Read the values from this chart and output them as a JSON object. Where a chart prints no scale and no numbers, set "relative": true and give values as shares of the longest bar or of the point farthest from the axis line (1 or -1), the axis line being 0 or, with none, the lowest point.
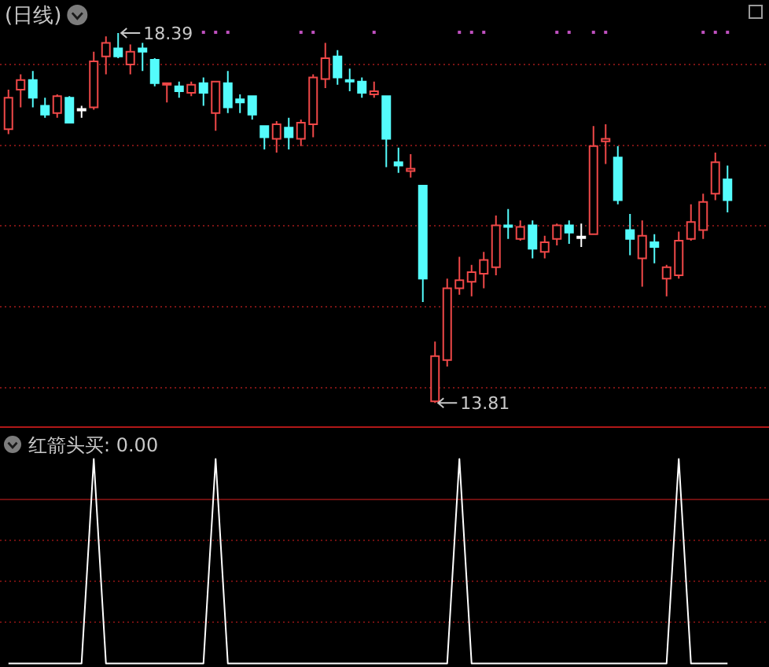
{
  "chart_data": [
    {
      "type": "candlestick",
      "title": "(日线)",
      "categories": [
        null,
        null,
        null,
        null,
        null,
        null,
        null,
        null,
        null,
        null,
        null,
        null,
        null,
        null,
        null,
        null,
        null,
        null,
        null,
        null,
        null,
        null,
        null,
        null,
        null,
        null,
        null,
        null,
        null,
        null,
        null,
        null,
        null,
        null,
        null,
        null,
        null,
        null,
        null,
        null,
        null,
        null,
        null,
        null,
        null,
        null,
        null,
        null,
        null,
        null,
        null,
        null,
        null,
        null,
        null,
        null,
        null,
        null,
        null,
        null
      ],
      "ohlc": [
        [
          17.2,
          17.69,
          17.14,
          17.59
        ],
        [
          17.69,
          17.88,
          17.47,
          17.81
        ],
        [
          17.81,
          17.92,
          17.47,
          17.59
        ],
        [
          17.49,
          17.59,
          17.34,
          17.38
        ],
        [
          17.4,
          17.63,
          17.34,
          17.61
        ],
        [
          17.59,
          17.61,
          17.28,
          17.28
        ],
        [
          17.44,
          17.49,
          17.34,
          17.44
        ],
        [
          17.47,
          18.16,
          17.44,
          18.04
        ],
        [
          18.1,
          18.35,
          17.88,
          18.27
        ],
        [
          18.2,
          18.39,
          18.08,
          18.1
        ],
        [
          18.0,
          18.25,
          17.88,
          18.16
        ],
        [
          18.2,
          18.27,
          17.92,
          18.16
        ],
        [
          18.06,
          18.08,
          17.73,
          17.77
        ],
        [
          17.75,
          17.77,
          17.53,
          17.77
        ],
        [
          17.73,
          17.79,
          17.59,
          17.67
        ],
        [
          17.65,
          17.79,
          17.61,
          17.75
        ],
        [
          17.77,
          17.84,
          17.49,
          17.65
        ],
        [
          17.4,
          17.79,
          17.18,
          17.79
        ],
        [
          17.77,
          17.92,
          17.4,
          17.47
        ],
        [
          17.57,
          17.63,
          17.4,
          17.53
        ],
        [
          17.61,
          17.61,
          17.32,
          17.38
        ],
        [
          17.24,
          17.24,
          16.95,
          17.1
        ],
        [
          17.08,
          17.3,
          16.91,
          17.26
        ],
        [
          17.22,
          17.34,
          16.95,
          17.1
        ],
        [
          17.08,
          17.32,
          16.99,
          17.28
        ],
        [
          17.26,
          17.88,
          17.1,
          17.84
        ],
        [
          17.82,
          18.27,
          17.71,
          18.08
        ],
        [
          18.1,
          18.18,
          17.75,
          17.84
        ],
        [
          17.81,
          17.95,
          17.67,
          17.79
        ],
        [
          17.79,
          17.84,
          17.59,
          17.65
        ],
        [
          17.63,
          17.79,
          17.59,
          17.67
        ],
        [
          17.61,
          17.61,
          16.73,
          17.08
        ],
        [
          16.79,
          16.97,
          16.66,
          16.75
        ],
        [
          16.68,
          16.89,
          16.6,
          16.71
        ],
        [
          16.5,
          16.5,
          15.06,
          15.35
        ],
        [
          13.83,
          14.57,
          13.81,
          14.39
        ],
        [
          14.34,
          15.35,
          14.26,
          15.23
        ],
        [
          15.23,
          15.62,
          15.15,
          15.33
        ],
        [
          15.31,
          15.52,
          15.13,
          15.43
        ],
        [
          15.41,
          15.68,
          15.23,
          15.58
        ],
        [
          15.49,
          16.13,
          15.39,
          16.01
        ],
        [
          16.01,
          16.21,
          15.84,
          15.99
        ],
        [
          15.84,
          16.07,
          15.82,
          15.99
        ],
        [
          16.01,
          16.07,
          15.6,
          15.72
        ],
        [
          15.68,
          15.88,
          15.6,
          15.8
        ],
        [
          15.84,
          16.03,
          15.76,
          16.01
        ],
        [
          16.01,
          16.07,
          15.78,
          15.92
        ],
        [
          15.86,
          16.03,
          15.74,
          15.86
        ],
        [
          15.9,
          17.24,
          15.9,
          16.99
        ],
        [
          17.05,
          17.26,
          16.77,
          17.08
        ],
        [
          16.85,
          16.99,
          16.27,
          16.32
        ],
        [
          15.95,
          16.15,
          15.64,
          15.84
        ],
        [
          15.6,
          16.07,
          15.25,
          15.88
        ],
        [
          15.8,
          15.9,
          15.54,
          15.74
        ],
        [
          15.35,
          15.52,
          15.13,
          15.49
        ],
        [
          15.39,
          15.93,
          15.35,
          15.82
        ],
        [
          15.84,
          16.27,
          15.82,
          16.05
        ],
        [
          15.95,
          16.4,
          15.84,
          16.3
        ],
        [
          16.4,
          16.91,
          16.32,
          16.79
        ],
        [
          16.58,
          16.75,
          16.17,
          16.32
        ]
      ],
      "colors": [
        "#f04848",
        "#f04848",
        "#54fcfc",
        "#54fcfc",
        "#f04848",
        "#54fcfc",
        "#ffffff",
        "#f04848",
        "#f04848",
        "#54fcfc",
        "#f04848",
        "#54fcfc",
        "#54fcfc",
        "#f04848",
        "#54fcfc",
        "#f04848",
        "#54fcfc",
        "#f04848",
        "#54fcfc",
        "#54fcfc",
        "#54fcfc",
        "#54fcfc",
        "#f04848",
        "#54fcfc",
        "#f04848",
        "#f04848",
        "#f04848",
        "#54fcfc",
        "#54fcfc",
        "#54fcfc",
        "#f04848",
        "#54fcfc",
        "#54fcfc",
        "#f04848",
        "#54fcfc",
        "#f04848",
        "#f04848",
        "#f04848",
        "#f04848",
        "#f04848",
        "#f04848",
        "#54fcfc",
        "#f04848",
        "#54fcfc",
        "#f04848",
        "#f04848",
        "#54fcfc",
        "#ffffff",
        "#f04848",
        "#f04848",
        "#54fcfc",
        "#54fcfc",
        "#f04848",
        "#54fcfc",
        "#f04848",
        "#f04848",
        "#f04848",
        "#f04848",
        "#f04848",
        "#54fcfc"
      ],
      "series": [
        {
          "type": "scatter",
          "color": "#c050c0",
          "marker": "square",
          "values": [
            null,
            null,
            null,
            null,
            null,
            null,
            null,
            null,
            null,
            null,
            null,
            null,
            null,
            null,
            null,
            null,
            18.4,
            18.4,
            18.4,
            null,
            null,
            null,
            null,
            null,
            18.4,
            18.4,
            null,
            null,
            null,
            null,
            18.4,
            null,
            null,
            null,
            null,
            null,
            null,
            18.4,
            18.4,
            18.4,
            null,
            null,
            null,
            null,
            null,
            18.4,
            18.4,
            null,
            18.4,
            18.4,
            null,
            null,
            null,
            null,
            null,
            null,
            null,
            18.4,
            18.4,
            18.4
          ]
        }
      ],
      "ylim": [
        13.52,
        18.8
      ],
      "yticks": [
        {
          "value": 14,
          "label": null
        },
        {
          "value": 15,
          "label": null
        },
        {
          "value": 16,
          "label": null
        },
        {
          "value": 17,
          "label": null
        },
        {
          "value": 18,
          "label": null
        }
      ],
      "grid": "y",
      "annotations": [
        "18.39",
        "13.81"
      ]
    },
    {
      "type": "line",
      "title": "红箭头买: 0.00",
      "categories": [
        null,
        null,
        null,
        null,
        null,
        null,
        null,
        null,
        null,
        null,
        null,
        null,
        null,
        null,
        null,
        null,
        null,
        null,
        null,
        null,
        null,
        null,
        null,
        null,
        null,
        null,
        null,
        null,
        null,
        null,
        null,
        null,
        null,
        null,
        null,
        null,
        null,
        null,
        null,
        null,
        null,
        null,
        null,
        null,
        null,
        null,
        null,
        null,
        null,
        null,
        null,
        null,
        null,
        null,
        null,
        null,
        null,
        null,
        null,
        null
      ],
      "relative": true,
      "series": [
        {
          "color": "#ffffff",
          "line_style": "solid",
          "values": [
            0,
            0,
            0,
            0,
            0,
            0,
            0,
            1,
            0,
            0,
            0,
            0,
            0,
            0,
            0,
            0,
            0,
            1,
            0,
            0,
            0,
            0,
            0,
            0,
            0,
            0,
            0,
            0,
            0,
            0,
            0,
            0,
            0,
            0,
            0,
            0,
            0,
            1,
            0,
            0,
            0,
            0,
            0,
            0,
            0,
            0,
            0,
            0,
            0,
            0,
            0,
            0,
            0,
            0,
            0,
            1,
            0,
            0,
            0,
            0
          ]
        }
      ],
      "ref_lines": [
        {
          "axis": "y",
          "value": 0.8,
          "color": "#6e1010",
          "line_style": "solid"
        },
        {
          "axis": "y",
          "value": 0.6,
          "color": "#6e1010",
          "line_style": "dotted"
        },
        {
          "axis": "y",
          "value": 0.4,
          "color": "#6e1010",
          "line_style": "dotted"
        },
        {
          "axis": "y",
          "value": 0.2,
          "color": "#6e1010",
          "line_style": "dotted"
        }
      ]
    }
  ]
}
